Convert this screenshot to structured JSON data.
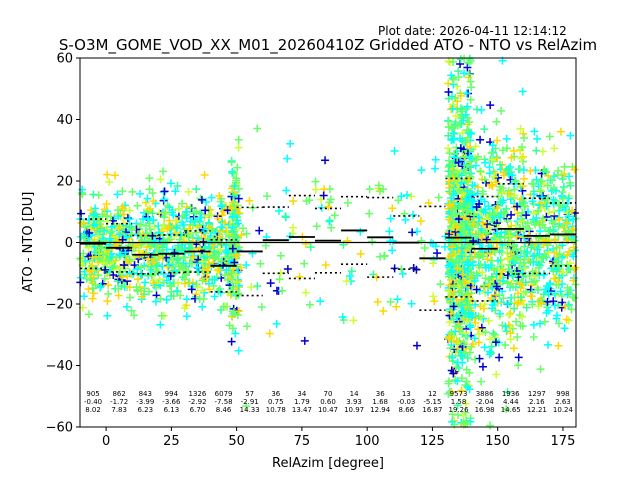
{
  "chart_data": {
    "type": "scatter",
    "plot_date": "Plot date: 2026-04-11 12:14:12",
    "title": "S-O3M_GOME_VOD_XX_M01_20260410Z Gridded ATO - NTO vs RelAzim",
    "xlabel": "RelAzim [degree]",
    "ylabel": "ATO - NTO [DU]",
    "xlim": [
      -10,
      180
    ],
    "ylim": [
      -60,
      60
    ],
    "xticks": [
      0,
      25,
      50,
      75,
      100,
      125,
      150,
      175
    ],
    "yticks": [
      -60,
      -40,
      -20,
      0,
      20,
      40,
      60
    ],
    "colors": {
      "scatter": [
        "#0000cc",
        "#00ffff",
        "#66ff66",
        "#ffd700",
        "#ccff33",
        "#33ff99"
      ],
      "mean_line": "#000000",
      "std_line": "#000000"
    },
    "bins": [
      {
        "center": -5,
        "count": "905",
        "mean": -0.4,
        "std": 8.02
      },
      {
        "center": 5,
        "count": "862",
        "mean": -1.72,
        "std": 7.83
      },
      {
        "center": 15,
        "count": "843",
        "mean": -3.99,
        "std": 6.23
      },
      {
        "center": 25,
        "count": "994",
        "mean": -3.66,
        "std": 6.13
      },
      {
        "center": 35,
        "count": "1326",
        "mean": -2.92,
        "std": 6.7
      },
      {
        "center": 45,
        "count": "6079",
        "mean": -7.58,
        "std": 8.46
      },
      {
        "center": 55,
        "count": "57",
        "mean": -2.91,
        "std": 14.33
      },
      {
        "center": 65,
        "count": "36",
        "mean": 0.75,
        "std": 10.78
      },
      {
        "center": 75,
        "count": "34",
        "mean": 1.79,
        "std": 13.47
      },
      {
        "center": 85,
        "count": "70",
        "mean": 0.6,
        "std": 10.47
      },
      {
        "center": 95,
        "count": "14",
        "mean": 3.93,
        "std": 10.97
      },
      {
        "center": 105,
        "count": "36",
        "mean": 1.68,
        "std": 12.94
      },
      {
        "center": 115,
        "count": "13",
        "mean": -0.03,
        "std": 8.66
      },
      {
        "center": 125,
        "count": "12",
        "mean": -5.15,
        "std": 16.87
      },
      {
        "center": 135,
        "count": "9573",
        "mean": 1.58,
        "std": 19.26
      },
      {
        "center": 145,
        "count": "3886",
        "mean": -2.04,
        "std": 16.98
      },
      {
        "center": 155,
        "count": "1936",
        "mean": 4.44,
        "std": 14.65
      },
      {
        "center": 165,
        "count": "1297",
        "mean": 2.16,
        "std": 12.21
      },
      {
        "center": 175,
        "count": "998",
        "mean": 2.63,
        "std": 10.24
      }
    ],
    "scatter_clusters": [
      {
        "x_range": [
          -10,
          50
        ],
        "spread": 9,
        "density": 900
      },
      {
        "x_range": [
          48,
          51
        ],
        "spread": 14,
        "density": 120
      },
      {
        "x_range": [
          51,
          130
        ],
        "spread": 16,
        "density": 140
      },
      {
        "x_range": [
          131,
          140
        ],
        "spread": 26,
        "density": 700
      },
      {
        "x_range": [
          140,
          160
        ],
        "spread": 18,
        "density": 500
      },
      {
        "x_range": [
          160,
          180
        ],
        "spread": 14,
        "density": 350
      }
    ]
  }
}
